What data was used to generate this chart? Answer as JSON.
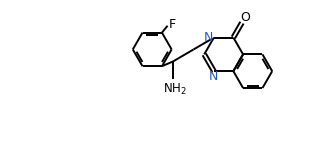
{
  "bg_color": "#ffffff",
  "line_color": "#000000",
  "label_color": "#000000",
  "n_color": "#2255cc",
  "o_color": "#000000",
  "figsize": [
    3.27,
    1.58
  ],
  "dpi": 100,
  "bond_lw": 1.4,
  "ring_r": 0.62,
  "xlim": [
    0,
    10
  ],
  "ylim": [
    0,
    5
  ]
}
